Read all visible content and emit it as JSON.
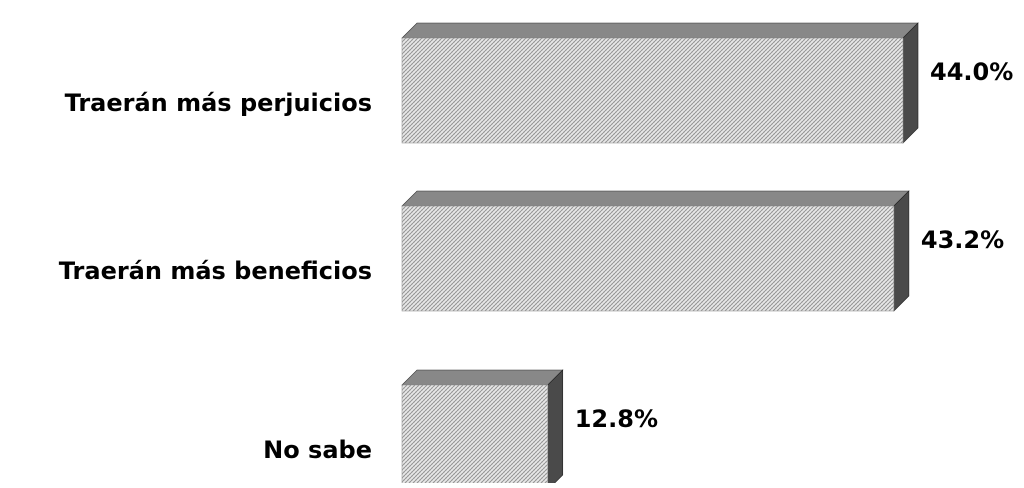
{
  "chart_data": {
    "type": "bar",
    "orientation": "horizontal",
    "style": "3d",
    "categories": [
      "Traerán más perjuicios",
      "Traerán más beneficios",
      "No sabe"
    ],
    "values": [
      44.0,
      43.2,
      12.8
    ],
    "value_labels": [
      "44.0%",
      "43.2%",
      "12.8%"
    ],
    "unit": "%",
    "title": "",
    "xlabel": "",
    "ylabel": "",
    "xlim": [
      0,
      44.0
    ],
    "grid": false,
    "legend": "none",
    "colors": {
      "bar_front": "#e8e8e8",
      "bar_hatch": "#8a8a8a",
      "bar_top": "#888888",
      "bar_side": "#4a4a4a",
      "text": "#000000"
    }
  }
}
